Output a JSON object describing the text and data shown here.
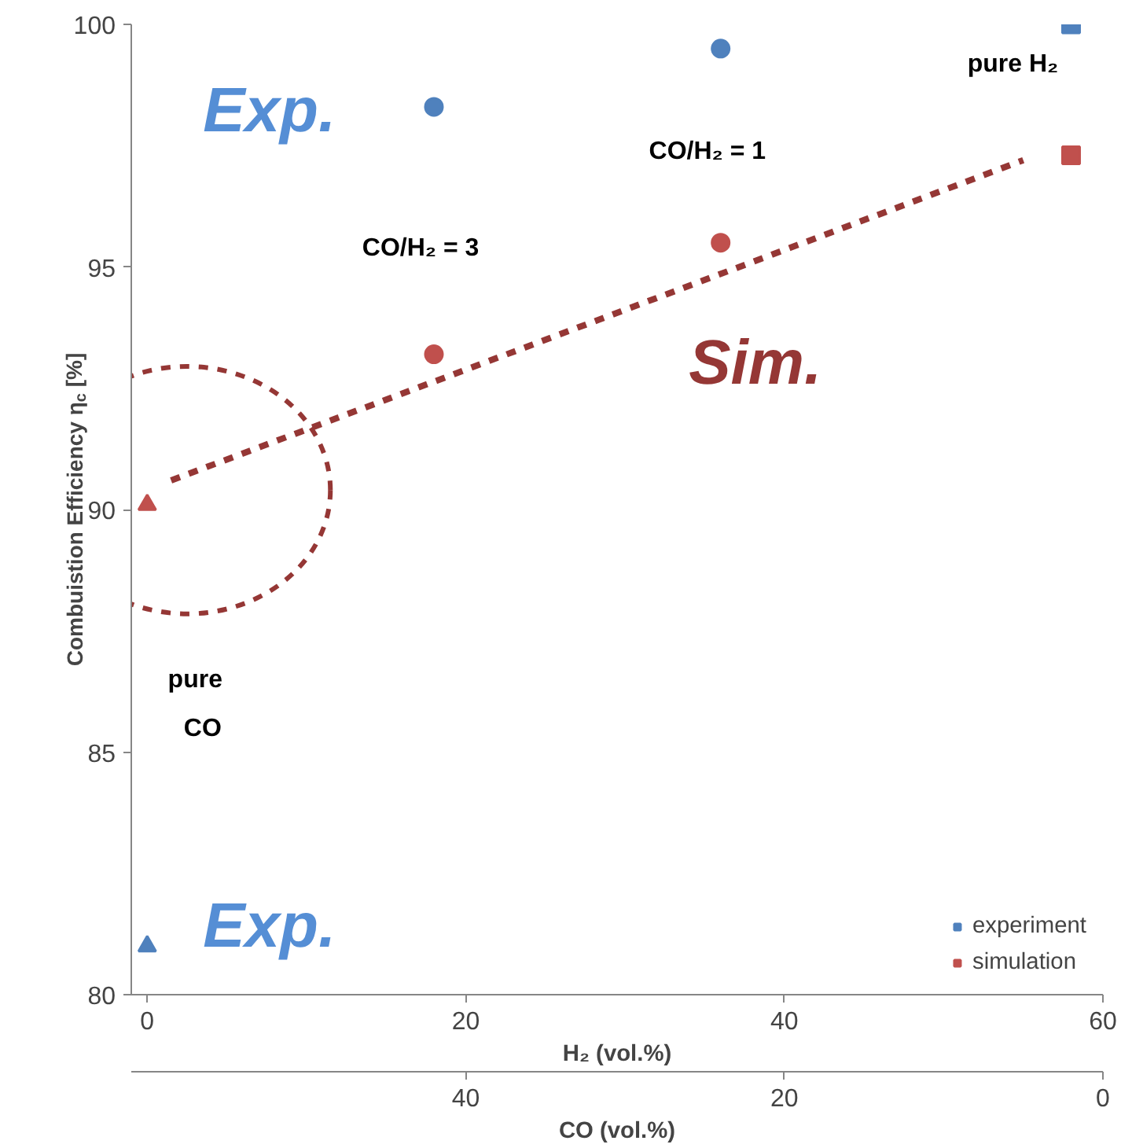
{
  "chart_data": {
    "type": "scatter",
    "xlabel": "H₂ (vol.%)",
    "x2label": "CO (vol.%)",
    "ylabel": "Combuistion Efficiency η$_{c}$ [%]",
    "xlim": [
      -1,
      60
    ],
    "xticks": [
      0,
      20,
      40,
      60
    ],
    "x2lim": [
      61,
      0
    ],
    "x2ticks": [
      40,
      20,
      0
    ],
    "ylim": [
      80,
      100
    ],
    "yticks": [
      80,
      85,
      90,
      95,
      100
    ],
    "grid": false,
    "legend": "bottom right",
    "series": [
      {
        "name": "experiment",
        "color": "#4f81bd",
        "x": [
          58
        ],
        "values": [
          100
        ],
        "marker": "square"
      },
      {
        "name": "simulation",
        "color": "#c0504d",
        "x": [
          58
        ],
        "values": [
          97.3
        ],
        "marker": "square"
      },
      {
        "color": "#4f81bd",
        "x": [
          18
        ],
        "values": [
          98.3
        ],
        "marker": "circle"
      },
      {
        "color": "#c0504d",
        "x": [
          18
        ],
        "values": [
          93.2
        ],
        "marker": "circle"
      },
      {
        "color": "#4f81bd",
        "x": [
          36
        ],
        "values": [
          99.5
        ],
        "marker": "circle"
      },
      {
        "color": "#c0504d",
        "x": [
          36
        ],
        "values": [
          95.5
        ],
        "marker": "circle"
      },
      {
        "color": "#4f81bd",
        "x": [
          0
        ],
        "values": [
          81
        ],
        "marker": "triangle"
      },
      {
        "color": "#c0504d",
        "x": [
          0
        ],
        "values": [
          90.1
        ],
        "marker": "triangle"
      },
      {
        "type": "line",
        "color": "#953735",
        "x": [
          1.5,
          55
        ],
        "values": [
          90.6,
          97.2
        ],
        "marker": "none",
        "line_style": "dashed"
      }
    ],
    "annotations": [
      "Exp.",
      "Exp.",
      "Sim.",
      "CO/H₂ = 3",
      "CO/H₂ = 1",
      "pure H₂",
      "pure",
      "CO"
    ]
  }
}
